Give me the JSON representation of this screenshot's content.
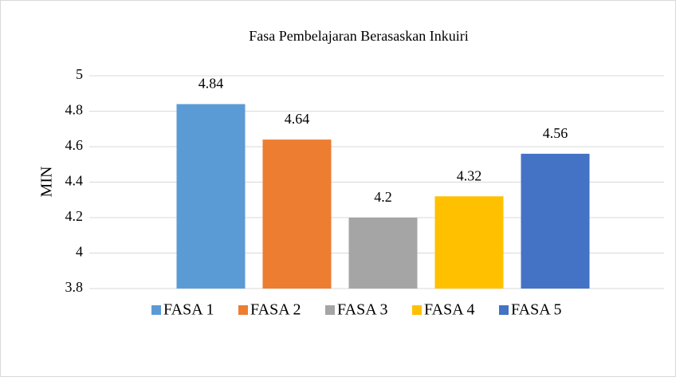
{
  "chart_data": {
    "type": "bar",
    "title": "Fasa Pembelajaran Berasaskan Inkuiri",
    "ylabel": "MIN",
    "categories": [
      null
    ],
    "series": [
      {
        "name": "FASA 1",
        "color": "#5b9bd5",
        "values": [
          4.84
        ]
      },
      {
        "name": "FASA 2",
        "color": "#ed7d31",
        "values": [
          4.64
        ]
      },
      {
        "name": "FASA 3",
        "color": "#a5a5a5",
        "values": [
          4.2
        ]
      },
      {
        "name": "FASA 4",
        "color": "#ffc000",
        "values": [
          4.32
        ]
      },
      {
        "name": "FASA 5",
        "color": "#4472c4",
        "values": [
          4.56
        ]
      }
    ],
    "ylim": [
      3.8,
      5
    ],
    "yticks": [
      3.8,
      4,
      4.2,
      4.4,
      4.6,
      4.8,
      5
    ],
    "grid": true,
    "legend": "bottom"
  }
}
